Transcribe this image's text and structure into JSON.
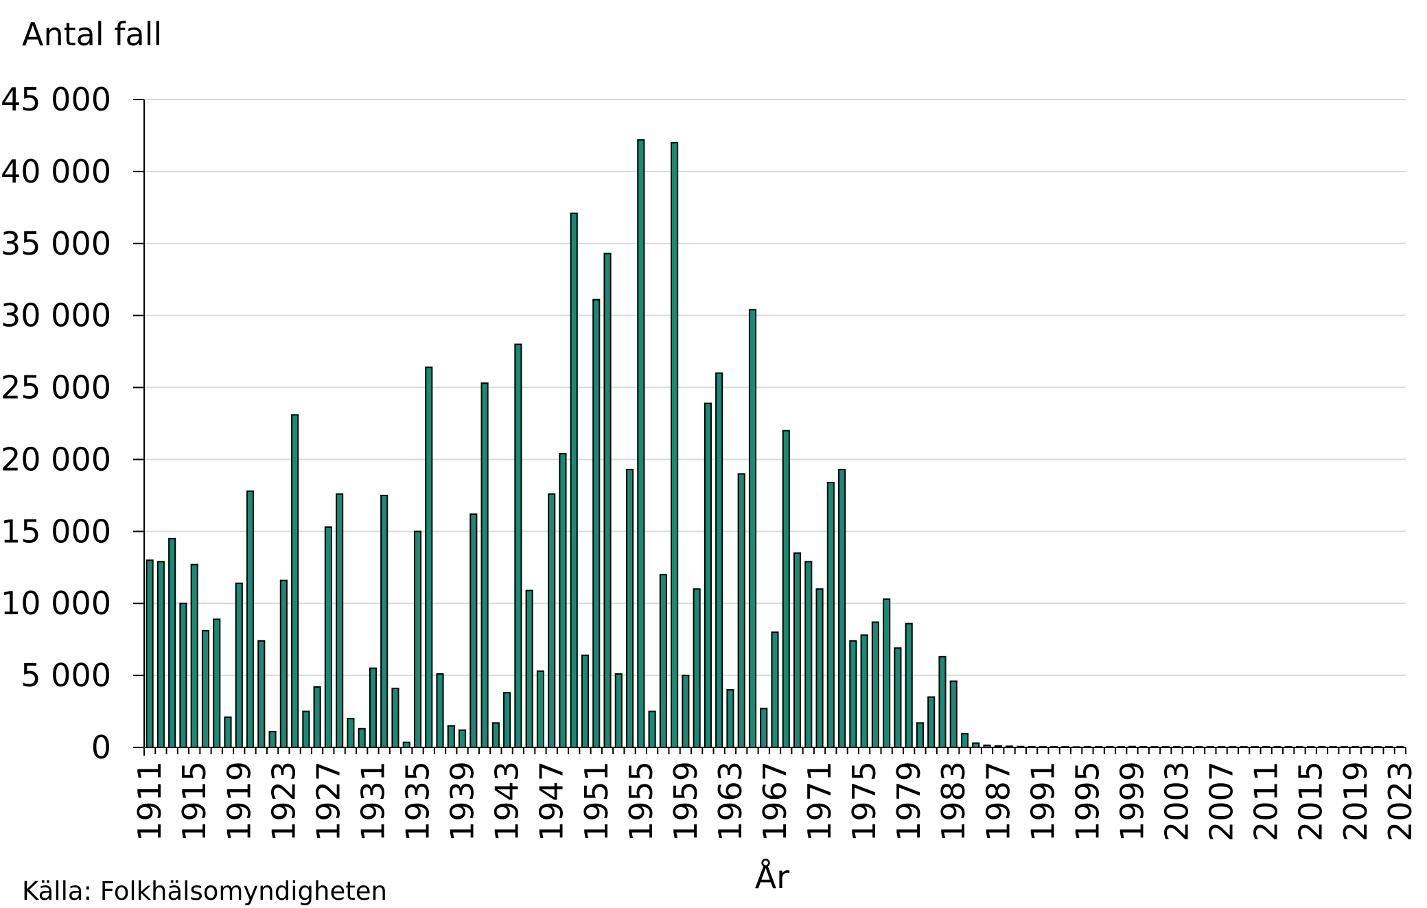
{
  "chart_data": {
    "type": "bar",
    "ylabel": "Antal fall",
    "xlabel": "År",
    "source": "Källa: Folkhälsomyndigheten",
    "ylim": [
      0,
      45000
    ],
    "yticks": [
      "0",
      "5 000",
      "10 000",
      "15 000",
      "20 000",
      "25 000",
      "30 000",
      "35 000",
      "40 000",
      "45 000"
    ],
    "xtick_labels": [
      "1911",
      "1915",
      "1919",
      "1923",
      "1927",
      "1931",
      "1935",
      "1939",
      "1943",
      "1947",
      "1951",
      "1955",
      "1959",
      "1963",
      "1967",
      "1971",
      "1975",
      "1979",
      "1983",
      "1987",
      "1991",
      "1995",
      "1999",
      "2003",
      "2007",
      "2011",
      "2015",
      "2019",
      "2023"
    ],
    "grid": true,
    "legend": "none",
    "bar_color": "#1a8a74",
    "categories": [
      1911,
      1912,
      1913,
      1914,
      1915,
      1916,
      1917,
      1918,
      1919,
      1920,
      1921,
      1922,
      1923,
      1924,
      1925,
      1926,
      1927,
      1928,
      1929,
      1930,
      1931,
      1932,
      1933,
      1934,
      1935,
      1936,
      1937,
      1938,
      1939,
      1940,
      1941,
      1942,
      1943,
      1944,
      1945,
      1946,
      1947,
      1948,
      1949,
      1950,
      1951,
      1952,
      1953,
      1954,
      1955,
      1956,
      1957,
      1958,
      1959,
      1960,
      1961,
      1962,
      1963,
      1964,
      1965,
      1966,
      1967,
      1968,
      1969,
      1970,
      1971,
      1972,
      1973,
      1974,
      1975,
      1976,
      1977,
      1978,
      1979,
      1980,
      1981,
      1982,
      1983,
      1984,
      1985,
      1986,
      1987,
      1988,
      1989,
      1990,
      1991,
      1992,
      1993,
      1994,
      1995,
      1996,
      1997,
      1998,
      1999,
      2000,
      2001,
      2002,
      2003,
      2004,
      2005,
      2006,
      2007,
      2008,
      2009,
      2010,
      2011,
      2012,
      2013,
      2014,
      2015,
      2016,
      2017,
      2018,
      2019,
      2020,
      2021,
      2022,
      2023
    ],
    "values": [
      13000,
      12900,
      14500,
      10000,
      12700,
      8100,
      8900,
      2100,
      11400,
      17800,
      7400,
      1100,
      11600,
      23100,
      2500,
      4200,
      15300,
      17600,
      2000,
      1300,
      5500,
      17500,
      4100,
      350,
      15000,
      26400,
      5100,
      1500,
      1200,
      16200,
      25300,
      1700,
      3800,
      28000,
      10900,
      5300,
      17600,
      20400,
      37100,
      6400,
      31100,
      34300,
      5100,
      19300,
      42200,
      2500,
      12000,
      42000,
      5000,
      11000,
      23900,
      26000,
      4000,
      19000,
      30400,
      2700,
      8000,
      22000,
      13500,
      12900,
      11000,
      18400,
      19300,
      7400,
      7800,
      8700,
      10300,
      6900,
      8600,
      1700,
      3500,
      6300,
      4600,
      950,
      300,
      150,
      100,
      80,
      60,
      50,
      40,
      40,
      40,
      30,
      40,
      40,
      40,
      40,
      60,
      50,
      40,
      40,
      40,
      40,
      40,
      40,
      40,
      40,
      40,
      40,
      40,
      40,
      40,
      40,
      40,
      40,
      40,
      40,
      40,
      40,
      40,
      40,
      40
    ]
  }
}
